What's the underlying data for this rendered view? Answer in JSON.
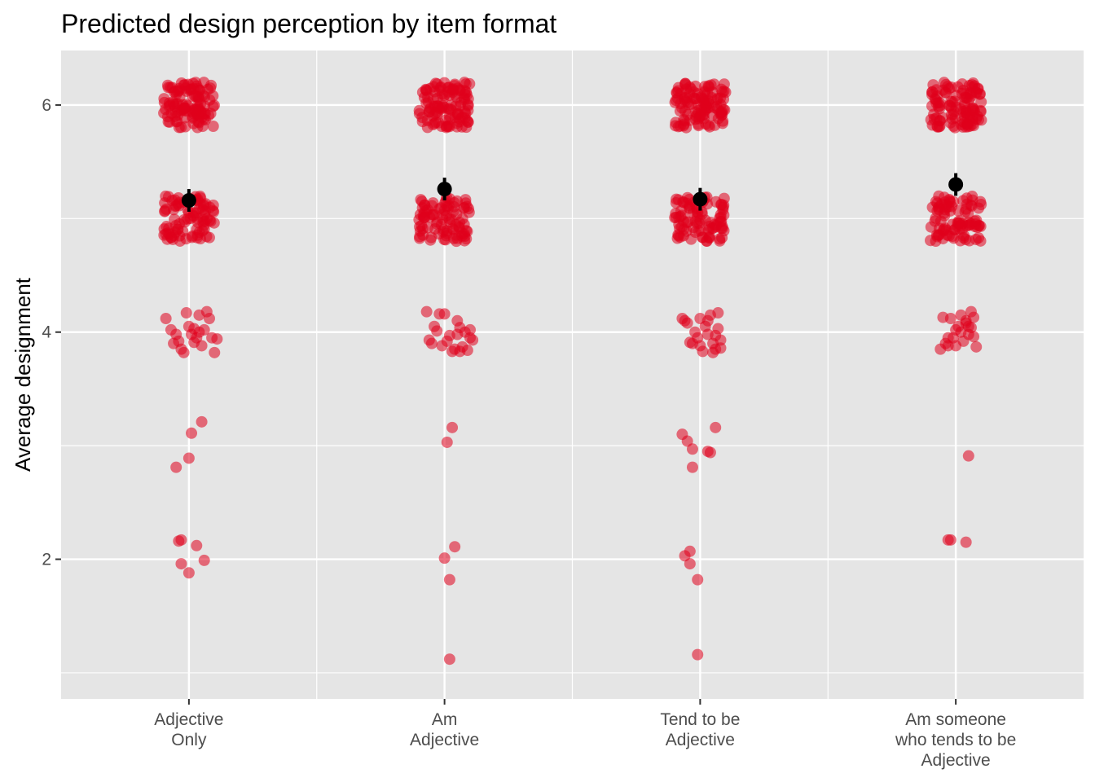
{
  "chart_data": {
    "type": "scatter",
    "title": "Predicted design perception by item format",
    "xlabel": "",
    "ylabel": "Average designment",
    "categories": [
      [
        "Adjective",
        "Only"
      ],
      [
        "Am",
        "Adjective"
      ],
      [
        "Tend to be",
        "Adjective"
      ],
      [
        "Am someone",
        "who tends to be",
        "Adjective"
      ]
    ],
    "ylim": [
      0.77,
      6.48
    ],
    "yticks": [
      2,
      4,
      6
    ],
    "grid": true,
    "legend": "none",
    "colors": {
      "panel": "#e5e5e5",
      "grid": "#ffffff",
      "points": "#e0001b",
      "summary": "#000000"
    },
    "series": [
      {
        "kind": "jittered_points",
        "cluster_counts": {
          "level_6": [
            110,
            110,
            110,
            110
          ],
          "level_5": [
            90,
            90,
            90,
            90
          ]
        },
        "points": [
          [
            [
              -0.09,
              4.12
            ],
            [
              -0.07,
              4.02
            ],
            [
              -0.05,
              3.98
            ],
            [
              -0.04,
              3.92
            ],
            [
              -0.03,
              3.85
            ],
            [
              -0.02,
              3.82
            ],
            [
              0.0,
              4.05
            ],
            [
              0.02,
              4.03
            ],
            [
              0.03,
              3.95
            ],
            [
              0.04,
              4.0
            ],
            [
              -0.01,
              4.17
            ],
            [
              0.02,
              3.91
            ],
            [
              0.04,
              4.15
            ],
            [
              0.05,
              3.88
            ],
            [
              0.06,
              4.02
            ],
            [
              0.07,
              4.18
            ],
            [
              0.08,
              4.12
            ],
            [
              0.09,
              3.95
            ],
            [
              0.1,
              3.82
            ],
            [
              0.11,
              3.94
            ],
            [
              -0.06,
              3.9
            ],
            [
              0.01,
              3.98
            ],
            [
              0.05,
              3.21
            ],
            [
              0.01,
              3.11
            ],
            [
              0.0,
              2.89
            ],
            [
              -0.05,
              2.81
            ],
            [
              -0.04,
              2.16
            ],
            [
              -0.03,
              2.17
            ],
            [
              0.03,
              2.12
            ],
            [
              -0.03,
              1.96
            ],
            [
              0.06,
              1.99
            ],
            [
              0.0,
              1.88
            ]
          ],
          [
            [
              -0.07,
              4.18
            ],
            [
              -0.06,
              3.93
            ],
            [
              -0.05,
              3.9
            ],
            [
              -0.03,
              4.01
            ],
            [
              -0.02,
              4.16
            ],
            [
              -0.01,
              3.88
            ],
            [
              0.0,
              4.16
            ],
            [
              0.01,
              3.92
            ],
            [
              0.02,
              3.97
            ],
            [
              0.03,
              3.83
            ],
            [
              0.04,
              3.85
            ],
            [
              0.05,
              3.98
            ],
            [
              0.06,
              4.04
            ],
            [
              0.07,
              3.87
            ],
            [
              0.08,
              4.0
            ],
            [
              0.09,
              3.84
            ],
            [
              0.1,
              3.95
            ],
            [
              0.11,
              3.93
            ],
            [
              -0.04,
              4.05
            ],
            [
              0.05,
              4.1
            ],
            [
              0.06,
              3.83
            ],
            [
              0.1,
              4.02
            ],
            [
              0.03,
              3.16
            ],
            [
              0.01,
              3.03
            ],
            [
              0.04,
              2.11
            ],
            [
              0.0,
              2.01
            ],
            [
              0.02,
              1.82
            ],
            [
              0.02,
              1.12
            ]
          ],
          [
            [
              -0.07,
              4.12
            ],
            [
              -0.05,
              4.08
            ],
            [
              -0.04,
              3.91
            ],
            [
              -0.03,
              3.9
            ],
            [
              -0.02,
              4.0
            ],
            [
              -0.01,
              3.95
            ],
            [
              0.0,
              3.88
            ],
            [
              0.01,
              3.83
            ],
            [
              0.02,
              4.05
            ],
            [
              0.03,
              4.1
            ],
            [
              0.04,
              4.15
            ],
            [
              0.05,
              3.9
            ],
            [
              0.06,
              3.85
            ],
            [
              0.07,
              4.03
            ],
            [
              0.08,
              3.86
            ],
            [
              -0.06,
              4.1
            ],
            [
              0.0,
              4.12
            ],
            [
              0.03,
              3.98
            ],
            [
              0.05,
              3.82
            ],
            [
              0.06,
              3.97
            ],
            [
              0.07,
              4.17
            ],
            [
              0.08,
              3.93
            ],
            [
              0.06,
              3.16
            ],
            [
              -0.07,
              3.1
            ],
            [
              -0.05,
              3.04
            ],
            [
              -0.03,
              2.97
            ],
            [
              0.04,
              2.94
            ],
            [
              0.03,
              2.95
            ],
            [
              -0.03,
              2.81
            ],
            [
              -0.06,
              2.03
            ],
            [
              -0.04,
              2.07
            ],
            [
              -0.04,
              1.96
            ],
            [
              -0.01,
              1.82
            ],
            [
              -0.01,
              1.16
            ]
          ],
          [
            [
              -0.06,
              3.85
            ],
            [
              -0.05,
              4.13
            ],
            [
              -0.04,
              3.9
            ],
            [
              -0.03,
              3.88
            ],
            [
              -0.02,
              4.12
            ],
            [
              -0.01,
              3.95
            ],
            [
              0.0,
              4.02
            ],
            [
              0.01,
              4.05
            ],
            [
              0.02,
              4.15
            ],
            [
              0.03,
              3.92
            ],
            [
              0.04,
              4.1
            ],
            [
              0.05,
              4.05
            ],
            [
              0.06,
              4.18
            ],
            [
              0.07,
              4.13
            ],
            [
              0.08,
              3.87
            ],
            [
              -0.03,
              3.95
            ],
            [
              0.0,
              3.88
            ],
            [
              0.02,
              4.0
            ],
            [
              0.04,
              4.08
            ],
            [
              0.05,
              3.98
            ],
            [
              0.06,
              4.04
            ],
            [
              0.07,
              3.96
            ],
            [
              0.05,
              2.91
            ],
            [
              -0.03,
              2.17
            ],
            [
              -0.02,
              2.17
            ],
            [
              0.04,
              2.15
            ]
          ]
        ]
      },
      {
        "kind": "mean_with_error",
        "means": [
          5.16,
          5.26,
          5.17,
          5.3
        ],
        "errors": [
          0.1,
          0.1,
          0.1,
          0.1
        ]
      }
    ]
  }
}
